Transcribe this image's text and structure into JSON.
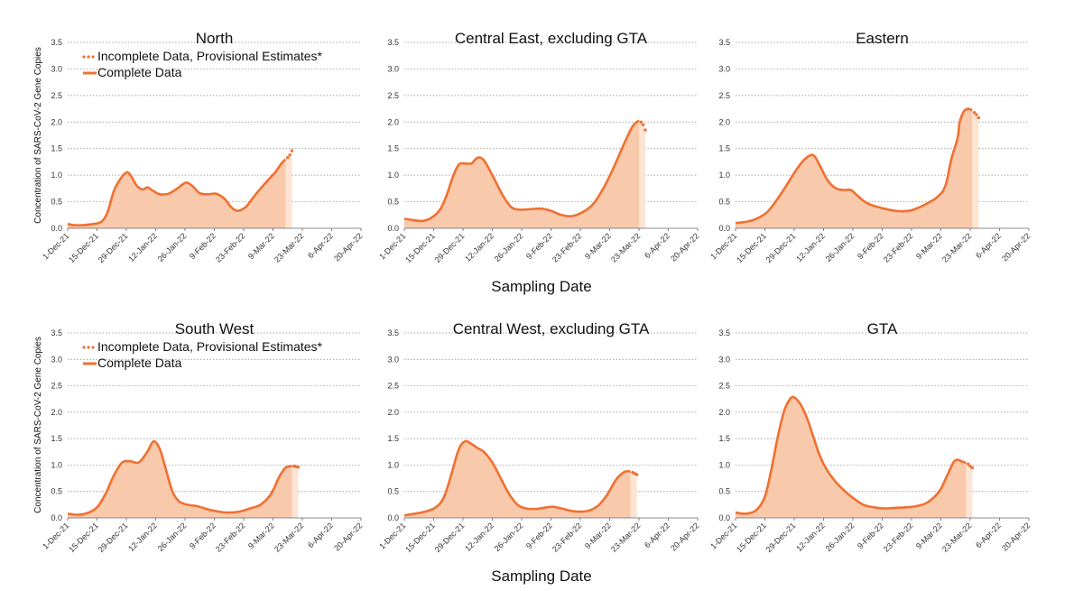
{
  "x_axis_label": "Sampling Date",
  "y_axis_label": "Concentration of SARS-CoV-2 Gene Copies",
  "legend": {
    "incomplete": "Incomplete Data, Provisional Estimates*",
    "complete": "Complete Data"
  },
  "colors": {
    "line": "#f07030",
    "fill": "#f9c9ab",
    "fill_provisional": "#fde4d3",
    "grid": "#888888"
  },
  "chart_data": [
    {
      "type": "area",
      "title": "North",
      "legend": true,
      "x_ticks": [
        "1-Dec-21",
        "15-Dec-21",
        "29-Dec-21",
        "12-Jan-22",
        "26-Jan-22",
        "9-Feb-22",
        "23-Feb-22",
        "9-Mar-22",
        "23-Mar-22",
        "6-Apr-22",
        "20-Apr-22"
      ],
      "y_ticks": [
        "0.0",
        "0.5",
        "1.0",
        "1.5",
        "2.0",
        "2.5",
        "3.0",
        "3.5"
      ],
      "ylim": [
        0,
        3.5
      ],
      "complete": [
        [
          0,
          0.08
        ],
        [
          3,
          0.06
        ],
        [
          7,
          0.06
        ],
        [
          12,
          0.08
        ],
        [
          16,
          0.12
        ],
        [
          19,
          0.3
        ],
        [
          22,
          0.7
        ],
        [
          25,
          0.92
        ],
        [
          28,
          1.05
        ],
        [
          30,
          1.0
        ],
        [
          33,
          0.8
        ],
        [
          36,
          0.73
        ],
        [
          38,
          0.77
        ],
        [
          41,
          0.7
        ],
        [
          44,
          0.64
        ],
        [
          48,
          0.65
        ],
        [
          52,
          0.74
        ],
        [
          55,
          0.83
        ],
        [
          57,
          0.86
        ],
        [
          60,
          0.78
        ],
        [
          63,
          0.66
        ],
        [
          67,
          0.64
        ],
        [
          71,
          0.65
        ],
        [
          75,
          0.55
        ],
        [
          78,
          0.4
        ],
        [
          81,
          0.33
        ],
        [
          85,
          0.4
        ],
        [
          88,
          0.55
        ],
        [
          91,
          0.7
        ],
        [
          95,
          0.88
        ],
        [
          99,
          1.05
        ],
        [
          102,
          1.22
        ],
        [
          104,
          1.3
        ]
      ],
      "provisional": [
        [
          105,
          1.33
        ],
        [
          106,
          1.38
        ],
        [
          107,
          1.46
        ]
      ]
    },
    {
      "type": "area",
      "title": "Central East, excluding GTA",
      "legend": false,
      "x_ticks": [
        "1-Dec-21",
        "15-Dec-21",
        "29-Dec-21",
        "12-Jan-22",
        "26-Jan-22",
        "9-Feb-22",
        "23-Feb-22",
        "9-Mar-22",
        "23-Mar-22",
        "6-Apr-22",
        "20-Apr-22"
      ],
      "y_ticks": [
        "0.0",
        "0.5",
        "1.0",
        "1.5",
        "2.0",
        "2.5",
        "3.0",
        "3.5"
      ],
      "ylim": [
        0,
        3.5
      ],
      "complete": [
        [
          0,
          0.18
        ],
        [
          5,
          0.15
        ],
        [
          9,
          0.14
        ],
        [
          13,
          0.2
        ],
        [
          17,
          0.35
        ],
        [
          20,
          0.6
        ],
        [
          23,
          0.95
        ],
        [
          26,
          1.2
        ],
        [
          29,
          1.22
        ],
        [
          32,
          1.22
        ],
        [
          35,
          1.33
        ],
        [
          38,
          1.28
        ],
        [
          42,
          1.0
        ],
        [
          47,
          0.62
        ],
        [
          51,
          0.4
        ],
        [
          55,
          0.35
        ],
        [
          60,
          0.36
        ],
        [
          65,
          0.37
        ],
        [
          70,
          0.33
        ],
        [
          75,
          0.25
        ],
        [
          80,
          0.23
        ],
        [
          85,
          0.3
        ],
        [
          90,
          0.45
        ],
        [
          95,
          0.75
        ],
        [
          100,
          1.15
        ],
        [
          105,
          1.6
        ],
        [
          109,
          1.92
        ],
        [
          112,
          2.03
        ]
      ],
      "provisional": [
        [
          113,
          2.0
        ],
        [
          114,
          1.95
        ],
        [
          115,
          1.85
        ]
      ]
    },
    {
      "type": "area",
      "title": "Eastern",
      "legend": false,
      "x_ticks": [
        "1-Dec-21",
        "15-Dec-21",
        "29-Dec-21",
        "12-Jan-22",
        "26-Jan-22",
        "9-Feb-22",
        "23-Feb-22",
        "9-Mar-22",
        "23-Mar-22",
        "6-Apr-22",
        "20-Apr-22"
      ],
      "y_ticks": [
        "0.0",
        "0.5",
        "1.0",
        "1.5",
        "2.0",
        "2.5",
        "3.0",
        "3.5"
      ],
      "ylim": [
        0,
        3.5
      ],
      "complete": [
        [
          0,
          0.1
        ],
        [
          5,
          0.12
        ],
        [
          10,
          0.18
        ],
        [
          15,
          0.3
        ],
        [
          20,
          0.55
        ],
        [
          25,
          0.85
        ],
        [
          29,
          1.1
        ],
        [
          33,
          1.3
        ],
        [
          37,
          1.38
        ],
        [
          40,
          1.2
        ],
        [
          44,
          0.9
        ],
        [
          48,
          0.75
        ],
        [
          52,
          0.72
        ],
        [
          55,
          0.72
        ],
        [
          58,
          0.62
        ],
        [
          61,
          0.52
        ],
        [
          64,
          0.45
        ],
        [
          68,
          0.4
        ],
        [
          72,
          0.36
        ],
        [
          76,
          0.33
        ],
        [
          80,
          0.32
        ],
        [
          84,
          0.34
        ],
        [
          88,
          0.4
        ],
        [
          92,
          0.48
        ],
        [
          96,
          0.58
        ],
        [
          100,
          0.78
        ],
        [
          103,
          1.3
        ],
        [
          106,
          1.7
        ],
        [
          107,
          2.0
        ],
        [
          109,
          2.2
        ],
        [
          111,
          2.25
        ],
        [
          113,
          2.22
        ]
      ],
      "provisional": [
        [
          114,
          2.18
        ],
        [
          115,
          2.14
        ],
        [
          116,
          2.08
        ]
      ]
    },
    {
      "type": "area",
      "title": "South West",
      "legend": true,
      "x_ticks": [
        "1-Dec-21",
        "15-Dec-21",
        "29-Dec-21",
        "12-Jan-22",
        "26-Jan-22",
        "9-Feb-22",
        "23-Feb-22",
        "9-Mar-22",
        "23-Mar-22",
        "6-Apr-22",
        "20-Apr-22"
      ],
      "y_ticks": [
        "0.0",
        "0.5",
        "1.0",
        "1.5",
        "2.0",
        "2.5",
        "3.0",
        "3.5"
      ],
      "ylim": [
        0,
        3.5
      ],
      "complete": [
        [
          0,
          0.08
        ],
        [
          5,
          0.06
        ],
        [
          10,
          0.1
        ],
        [
          14,
          0.2
        ],
        [
          18,
          0.45
        ],
        [
          22,
          0.8
        ],
        [
          26,
          1.05
        ],
        [
          30,
          1.07
        ],
        [
          34,
          1.05
        ],
        [
          38,
          1.25
        ],
        [
          41,
          1.45
        ],
        [
          44,
          1.3
        ],
        [
          47,
          0.9
        ],
        [
          50,
          0.5
        ],
        [
          53,
          0.32
        ],
        [
          57,
          0.25
        ],
        [
          62,
          0.22
        ],
        [
          67,
          0.16
        ],
        [
          72,
          0.12
        ],
        [
          77,
          0.1
        ],
        [
          82,
          0.12
        ],
        [
          87,
          0.18
        ],
        [
          92,
          0.25
        ],
        [
          97,
          0.45
        ],
        [
          101,
          0.78
        ],
        [
          104,
          0.95
        ],
        [
          107,
          0.98
        ]
      ],
      "provisional": [
        [
          108,
          0.98
        ],
        [
          109,
          0.97
        ],
        [
          110,
          0.96
        ]
      ]
    },
    {
      "type": "area",
      "title": "Central West, excluding GTA",
      "legend": false,
      "x_ticks": [
        "1-Dec-21",
        "15-Dec-21",
        "29-Dec-21",
        "12-Jan-22",
        "26-Jan-22",
        "9-Feb-22",
        "23-Feb-22",
        "9-Mar-22",
        "23-Mar-22",
        "6-Apr-22",
        "20-Apr-22"
      ],
      "y_ticks": [
        "0.0",
        "0.5",
        "1.0",
        "1.5",
        "2.0",
        "2.5",
        "3.0",
        "3.5"
      ],
      "ylim": [
        0,
        3.5
      ],
      "complete": [
        [
          0,
          0.05
        ],
        [
          5,
          0.08
        ],
        [
          10,
          0.12
        ],
        [
          15,
          0.2
        ],
        [
          19,
          0.4
        ],
        [
          23,
          0.9
        ],
        [
          26,
          1.3
        ],
        [
          29,
          1.45
        ],
        [
          32,
          1.4
        ],
        [
          35,
          1.32
        ],
        [
          38,
          1.25
        ],
        [
          42,
          1.05
        ],
        [
          46,
          0.75
        ],
        [
          50,
          0.45
        ],
        [
          54,
          0.25
        ],
        [
          58,
          0.18
        ],
        [
          63,
          0.17
        ],
        [
          68,
          0.2
        ],
        [
          71,
          0.21
        ],
        [
          75,
          0.18
        ],
        [
          80,
          0.13
        ],
        [
          85,
          0.12
        ],
        [
          89,
          0.15
        ],
        [
          93,
          0.25
        ],
        [
          97,
          0.45
        ],
        [
          101,
          0.72
        ],
        [
          105,
          0.87
        ],
        [
          108,
          0.88
        ]
      ],
      "provisional": [
        [
          109,
          0.86
        ],
        [
          110,
          0.84
        ],
        [
          111,
          0.82
        ]
      ]
    },
    {
      "type": "area",
      "title": "GTA",
      "legend": false,
      "x_ticks": [
        "1-Dec-21",
        "15-Dec-21",
        "29-Dec-21",
        "12-Jan-22",
        "26-Jan-22",
        "9-Feb-22",
        "23-Feb-22",
        "9-Mar-22",
        "23-Mar-22",
        "6-Apr-22",
        "20-Apr-22"
      ],
      "y_ticks": [
        "0.0",
        "0.5",
        "1.0",
        "1.5",
        "2.0",
        "2.5",
        "3.0",
        "3.5"
      ],
      "ylim": [
        0,
        3.5
      ],
      "complete": [
        [
          0,
          0.1
        ],
        [
          5,
          0.08
        ],
        [
          10,
          0.15
        ],
        [
          14,
          0.4
        ],
        [
          17,
          0.9
        ],
        [
          20,
          1.5
        ],
        [
          23,
          2.0
        ],
        [
          26,
          2.25
        ],
        [
          28,
          2.28
        ],
        [
          31,
          2.15
        ],
        [
          34,
          1.9
        ],
        [
          37,
          1.55
        ],
        [
          40,
          1.2
        ],
        [
          43,
          0.95
        ],
        [
          47,
          0.72
        ],
        [
          51,
          0.55
        ],
        [
          56,
          0.38
        ],
        [
          61,
          0.25
        ],
        [
          66,
          0.2
        ],
        [
          71,
          0.18
        ],
        [
          76,
          0.19
        ],
        [
          81,
          0.2
        ],
        [
          86,
          0.22
        ],
        [
          91,
          0.28
        ],
        [
          95,
          0.4
        ],
        [
          98,
          0.55
        ],
        [
          101,
          0.8
        ],
        [
          104,
          1.05
        ],
        [
          106,
          1.1
        ],
        [
          108,
          1.07
        ],
        [
          110,
          1.04
        ]
      ],
      "provisional": [
        [
          111,
          1.02
        ],
        [
          112,
          0.98
        ],
        [
          113,
          0.95
        ]
      ]
    }
  ]
}
